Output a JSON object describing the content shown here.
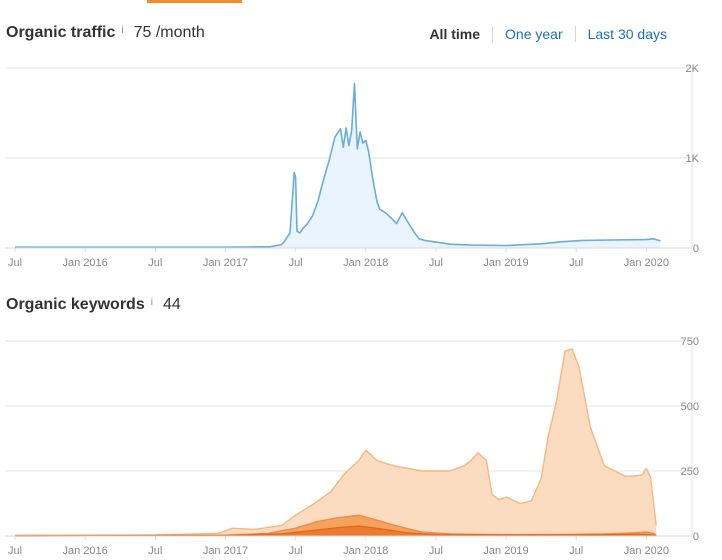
{
  "tabs_indicator_color": "#f28c28",
  "traffic": {
    "title": "Organic traffic",
    "info_icon": "i",
    "value": "75 /month",
    "ranges": [
      {
        "label": "All time",
        "active": true
      },
      {
        "label": "One year",
        "active": false
      },
      {
        "label": "Last 30 days",
        "active": false
      }
    ]
  },
  "keywords": {
    "title": "Organic keywords",
    "info_icon": "i",
    "value": "44"
  },
  "chart_data": [
    {
      "type": "area",
      "x_ticks": [
        "Jul",
        "Jan 2016",
        "Jul",
        "Jan 2017",
        "Jul",
        "Jan 2018",
        "Jul",
        "Jan 2019",
        "Jul",
        "Jan 2020"
      ],
      "y_ticks": [
        "2K",
        "1K",
        "0"
      ],
      "ylim": [
        0,
        2000
      ],
      "color": "#6aaed6",
      "fill": "#eaf4fc",
      "x": [
        2015.5,
        2016.0,
        2016.5,
        2017.0,
        2017.32,
        2017.4,
        2017.42,
        2017.46,
        2017.49,
        2017.5,
        2017.51,
        2017.53,
        2017.55,
        2017.58,
        2017.62,
        2017.66,
        2017.7,
        2017.74,
        2017.78,
        2017.82,
        2017.84,
        2017.86,
        2017.88,
        2017.9,
        2017.92,
        2017.94,
        2017.96,
        2017.98,
        2018.0,
        2018.02,
        2018.05,
        2018.08,
        2018.1,
        2018.14,
        2018.18,
        2018.22,
        2018.26,
        2018.3,
        2018.34,
        2018.38,
        2018.42,
        2018.5,
        2018.6,
        2018.75,
        2019.0,
        2019.25,
        2019.4,
        2019.55,
        2019.75,
        2020.0,
        2020.05,
        2020.1
      ],
      "values": [
        10,
        10,
        10,
        10,
        15,
        40,
        80,
        180,
        900,
        840,
        200,
        180,
        230,
        280,
        380,
        560,
        820,
        1050,
        1320,
        1420,
        1200,
        1430,
        1220,
        1400,
        1960,
        1180,
        1380,
        1250,
        1280,
        1150,
        820,
        550,
        460,
        420,
        360,
        290,
        420,
        310,
        200,
        110,
        90,
        70,
        45,
        35,
        30,
        50,
        75,
        90,
        95,
        100,
        110,
        85
      ]
    },
    {
      "type": "area",
      "x_ticks": [
        "Jul",
        "Jan 2016",
        "Jul",
        "Jan 2017",
        "Jul",
        "Jan 2018",
        "Jul",
        "Jan 2019",
        "Jul",
        "Jan 2020"
      ],
      "y_ticks": [
        "750",
        "500",
        "250",
        "0"
      ],
      "ylim": [
        0,
        750
      ],
      "series": [
        {
          "color": "#f6b77f",
          "fill": "#fcdcc0",
          "x": [
            2015.5,
            2016.5,
            2016.95,
            2017.05,
            2017.2,
            2017.4,
            2017.5,
            2017.62,
            2017.75,
            2017.85,
            2017.95,
            2018.0,
            2018.08,
            2018.2,
            2018.4,
            2018.55,
            2018.6,
            2018.7,
            2018.75,
            2018.8,
            2018.86,
            2018.9,
            2018.95,
            2019.0,
            2019.1,
            2019.18,
            2019.25,
            2019.3,
            2019.36,
            2019.42,
            2019.47,
            2019.52,
            2019.6,
            2019.7,
            2019.85,
            2019.9,
            2019.97,
            2020.0,
            2020.03,
            2020.07
          ],
          "values": [
            3,
            4,
            10,
            30,
            25,
            40,
            80,
            120,
            170,
            240,
            290,
            330,
            290,
            270,
            250,
            250,
            250,
            270,
            290,
            320,
            290,
            160,
            140,
            150,
            125,
            135,
            220,
            380,
            520,
            710,
            720,
            650,
            420,
            270,
            230,
            230,
            235,
            260,
            225,
            40
          ]
        },
        {
          "color": "#f08a4b",
          "fill": "#f5a25d",
          "x": [
            2015.5,
            2017.0,
            2017.3,
            2017.5,
            2017.65,
            2017.8,
            2017.95,
            2018.05,
            2018.15,
            2018.25,
            2018.4,
            2018.6,
            2019.0,
            2019.4,
            2019.7,
            2019.9,
            2020.0,
            2020.05,
            2020.07
          ],
          "values": [
            1,
            3,
            10,
            30,
            55,
            70,
            80,
            65,
            50,
            35,
            15,
            8,
            5,
            6,
            8,
            12,
            15,
            10,
            3
          ]
        },
        {
          "color": "#e36a1d",
          "fill": "#ec7b2f",
          "x": [
            2015.5,
            2017.0,
            2017.4,
            2017.6,
            2017.8,
            2017.95,
            2018.1,
            2018.3,
            2018.5,
            2019.0,
            2019.5,
            2019.9,
            2020.0,
            2020.07
          ],
          "values": [
            0,
            2,
            8,
            20,
            32,
            38,
            28,
            12,
            5,
            4,
            4,
            6,
            6,
            2
          ]
        }
      ]
    }
  ]
}
